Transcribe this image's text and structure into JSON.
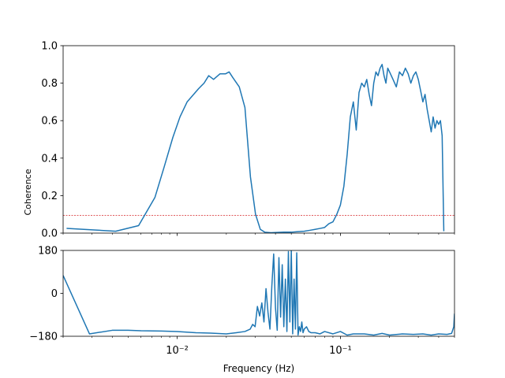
{
  "chart_data": [
    {
      "type": "line",
      "xscale": "log",
      "xlim": [
        0.002,
        0.5
      ],
      "ylim": [
        0,
        1.0
      ],
      "yticks": [
        0.0,
        0.2,
        0.4,
        0.6,
        0.8,
        1.0
      ],
      "ytick_labels": [
        "0.0",
        "0.2",
        "0.4",
        "0.6",
        "0.8",
        "1.0"
      ],
      "ylabel": "Coherence",
      "line_color": "#1f77b4",
      "threshold": {
        "value": 0.095,
        "color": "#d62728",
        "style": "dashed"
      },
      "series": [
        {
          "x": [
            0.0021,
            0.0042,
            0.0058,
            0.0073,
            0.0083,
            0.0094,
            0.0104,
            0.0115,
            0.0135,
            0.0146,
            0.0156,
            0.0167,
            0.0183,
            0.0198,
            0.0208,
            0.0219,
            0.024,
            0.026,
            0.0281,
            0.0302,
            0.0323,
            0.0344,
            0.0375,
            0.04,
            0.045,
            0.05,
            0.055,
            0.06,
            0.065,
            0.07,
            0.075,
            0.08,
            0.085,
            0.09,
            0.095,
            0.1,
            0.105,
            0.11,
            0.115,
            0.12,
            0.125,
            0.13,
            0.135,
            0.14,
            0.145,
            0.15,
            0.155,
            0.16,
            0.165,
            0.17,
            0.175,
            0.18,
            0.185,
            0.19,
            0.195,
            0.2,
            0.21,
            0.22,
            0.23,
            0.24,
            0.25,
            0.26,
            0.27,
            0.28,
            0.29,
            0.3,
            0.31,
            0.32,
            0.33,
            0.34,
            0.35,
            0.36,
            0.37,
            0.38,
            0.39,
            0.4,
            0.41,
            0.42,
            0.43
          ],
          "y": [
            0.025,
            0.01,
            0.04,
            0.19,
            0.35,
            0.51,
            0.62,
            0.7,
            0.77,
            0.8,
            0.84,
            0.82,
            0.85,
            0.85,
            0.86,
            0.83,
            0.78,
            0.67,
            0.3,
            0.1,
            0.02,
            0.005,
            0.002,
            0.003,
            0.005,
            0.005,
            0.008,
            0.01,
            0.015,
            0.02,
            0.025,
            0.03,
            0.05,
            0.06,
            0.1,
            0.15,
            0.25,
            0.42,
            0.62,
            0.7,
            0.55,
            0.75,
            0.8,
            0.78,
            0.82,
            0.74,
            0.68,
            0.8,
            0.86,
            0.84,
            0.88,
            0.9,
            0.84,
            0.8,
            0.88,
            0.86,
            0.82,
            0.78,
            0.86,
            0.84,
            0.88,
            0.85,
            0.8,
            0.84,
            0.86,
            0.82,
            0.76,
            0.7,
            0.74,
            0.66,
            0.6,
            0.54,
            0.62,
            0.56,
            0.6,
            0.58,
            0.6,
            0.52,
            0.01
          ]
        }
      ]
    },
    {
      "type": "line",
      "xscale": "log",
      "xlim": [
        0.002,
        0.5
      ],
      "ylim": [
        -180,
        180
      ],
      "yticks": [
        -180,
        0,
        180
      ],
      "ytick_labels": [
        "−180",
        "0",
        "180"
      ],
      "xticks": [
        0.01,
        0.1
      ],
      "xtick_labels": [
        "10⁻²",
        "10⁻¹"
      ],
      "xlabel": "Frequency (Hz)",
      "line_color": "#1f77b4",
      "series": [
        {
          "x": [
            0.002,
            0.0029,
            0.004,
            0.005,
            0.006,
            0.008,
            0.01,
            0.013,
            0.016,
            0.02,
            0.023,
            0.026,
            0.028,
            0.029,
            0.03,
            0.031,
            0.032,
            0.033,
            0.034,
            0.035,
            0.036,
            0.037,
            0.038,
            0.039,
            0.04,
            0.041,
            0.042,
            0.043,
            0.044,
            0.045,
            0.046,
            0.047,
            0.048,
            0.049,
            0.05,
            0.051,
            0.052,
            0.053,
            0.054,
            0.055,
            0.056,
            0.057,
            0.058,
            0.059,
            0.06,
            0.062,
            0.064,
            0.066,
            0.07,
            0.075,
            0.08,
            0.09,
            0.1,
            0.11,
            0.12,
            0.14,
            0.16,
            0.18,
            0.2,
            0.24,
            0.28,
            0.32,
            0.36,
            0.4,
            0.45,
            0.48,
            0.495,
            0.5
          ],
          "y": [
            75,
            -170,
            -155,
            -155,
            -157,
            -158,
            -160,
            -165,
            -167,
            -170,
            -165,
            -160,
            -150,
            -130,
            -140,
            -55,
            -95,
            -40,
            -120,
            20,
            -80,
            -150,
            30,
            165,
            -60,
            -155,
            150,
            -100,
            120,
            -140,
            60,
            -160,
            175,
            -120,
            180,
            -170,
            60,
            -150,
            170,
            -175,
            -140,
            -160,
            -120,
            -165,
            -150,
            -140,
            -160,
            -165,
            -165,
            -170,
            -160,
            -170,
            -160,
            -175,
            -170,
            -170,
            -175,
            -168,
            -175,
            -170,
            -172,
            -170,
            -175,
            -170,
            -172,
            -168,
            -140,
            -85
          ]
        }
      ]
    }
  ]
}
